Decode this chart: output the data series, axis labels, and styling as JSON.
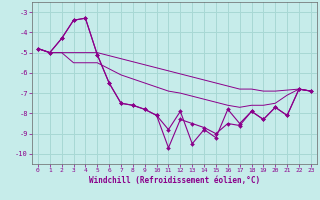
{
  "xlabel": "Windchill (Refroidissement éolien,°C)",
  "background_color": "#c6ecea",
  "grid_color": "#a8d8d4",
  "line_color": "#8b008b",
  "x": [
    0,
    1,
    2,
    3,
    4,
    5,
    6,
    7,
    8,
    9,
    10,
    11,
    12,
    13,
    14,
    15,
    16,
    17,
    18,
    19,
    20,
    21,
    22,
    23
  ],
  "line_zigzag1": [
    -4.8,
    -5.0,
    -4.3,
    -3.4,
    -3.3,
    -5.1,
    -6.5,
    -7.5,
    -7.6,
    -7.8,
    -8.1,
    -8.8,
    -7.9,
    -9.5,
    -8.8,
    -9.2,
    -7.8,
    -8.5,
    -7.9,
    -8.3,
    -7.7,
    -8.1,
    -6.8,
    -6.9
  ],
  "line_zigzag2": [
    -4.8,
    -5.0,
    -4.3,
    -3.4,
    -3.3,
    -5.1,
    -6.5,
    -7.5,
    -7.6,
    -7.8,
    -8.1,
    -9.7,
    -8.3,
    -8.5,
    -8.7,
    -9.0,
    -8.5,
    -8.6,
    -7.9,
    -8.3,
    -7.7,
    -8.1,
    -6.8,
    -6.9
  ],
  "line_upper": [
    -4.8,
    -5.0,
    -5.0,
    -5.0,
    -5.0,
    -5.0,
    -5.15,
    -5.3,
    -5.45,
    -5.6,
    -5.75,
    -5.9,
    -6.05,
    -6.2,
    -6.35,
    -6.5,
    -6.65,
    -6.8,
    -6.8,
    -6.9,
    -6.9,
    -6.85,
    -6.8,
    -6.9
  ],
  "line_lower": [
    -4.8,
    -5.0,
    -5.0,
    -5.5,
    -5.5,
    -5.5,
    -5.8,
    -6.1,
    -6.3,
    -6.5,
    -6.7,
    -6.9,
    -7.0,
    -7.15,
    -7.3,
    -7.45,
    -7.6,
    -7.7,
    -7.6,
    -7.6,
    -7.5,
    -7.1,
    -6.8,
    -6.9
  ],
  "ylim": [
    -10.5,
    -2.5
  ],
  "yticks": [
    -3,
    -4,
    -5,
    -6,
    -7,
    -8,
    -9,
    -10
  ],
  "xlim": [
    -0.5,
    23.5
  ]
}
